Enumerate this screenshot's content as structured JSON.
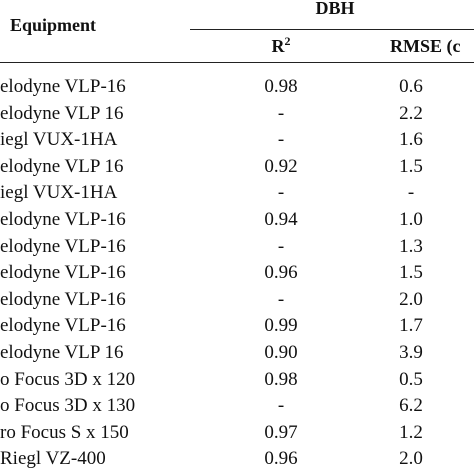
{
  "header": {
    "equipment": "Equipment",
    "group": "DBH",
    "r2": {
      "base": "R",
      "sup": "2"
    },
    "rmse": "RMSE (c"
  },
  "table": {
    "rows": [
      [
        "elodyne VLP-16",
        "0.98",
        "0.6"
      ],
      [
        "elodyne VLP 16",
        "-",
        "2.2"
      ],
      [
        "iegl VUX-1HA",
        "-",
        "1.6"
      ],
      [
        "elodyne VLP 16",
        "0.92",
        "1.5"
      ],
      [
        "iegl VUX-1HA",
        "-",
        "-"
      ],
      [
        "elodyne VLP-16",
        "0.94",
        "1.0"
      ],
      [
        "elodyne VLP-16",
        "-",
        "1.3"
      ],
      [
        "elodyne VLP-16",
        "0.96",
        "1.5"
      ],
      [
        "elodyne VLP-16",
        "-",
        "2.0"
      ],
      [
        "elodyne VLP-16",
        "0.99",
        "1.7"
      ],
      [
        "elodyne VLP 16",
        "0.90",
        "3.9"
      ],
      [
        "o Focus 3D x 120",
        "0.98",
        "0.5"
      ],
      [
        "o Focus 3D x 130",
        "-",
        "6.2"
      ],
      [
        "ro Focus S x 150",
        "0.97",
        "1.2"
      ],
      [
        "Riegl VZ-400",
        "0.96",
        "2.0"
      ]
    ]
  }
}
